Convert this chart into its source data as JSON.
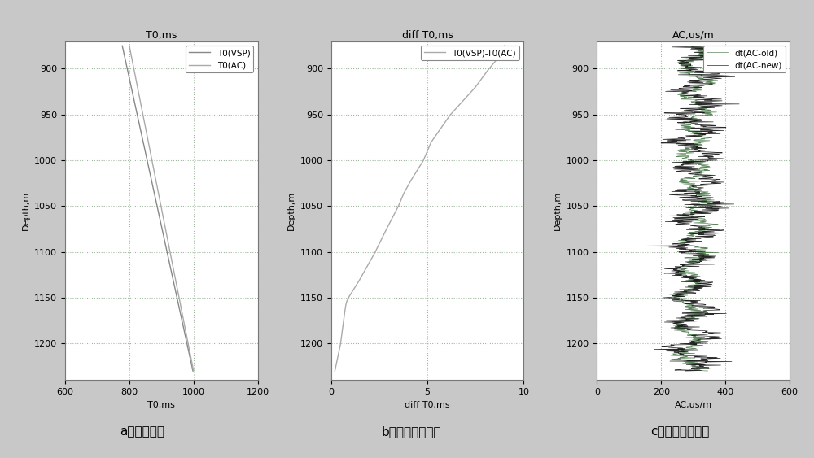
{
  "fig_width": 10.0,
  "fig_height": 5.63,
  "fig_dpi": 100,
  "bg_color": "#c8c8c8",
  "panel_bg": "#ffffff",
  "depth_min": 875,
  "depth_max": 1230,
  "depth_ticks": [
    900,
    950,
    1000,
    1050,
    1100,
    1150,
    1200
  ],
  "panel_a": {
    "title": "T0,ms",
    "xlabel": "T0,ms",
    "xlim": [
      600,
      1200
    ],
    "xticks": [
      600,
      800,
      1000,
      1200
    ],
    "vsp_color": "#888888",
    "ac_color": "#aaaaaa",
    "legend_labels": [
      "T0(VSP)",
      "T0(AC)"
    ]
  },
  "panel_b": {
    "title": "diff T0,ms",
    "xlabel": "diff T0,ms",
    "xlim": [
      0,
      10
    ],
    "xticks": [
      0,
      5,
      10
    ],
    "diff_color": "#aaaaaa",
    "legend_label": "T0(VSP)-T0(AC)"
  },
  "panel_c": {
    "title": "AC,us/m",
    "xlabel": "AC,us/m",
    "xlim": [
      0,
      600
    ],
    "xticks": [
      0,
      200,
      400,
      600
    ],
    "old_color": "#4a7a4a",
    "new_color": "#111111",
    "legend_labels": [
      "dt(AC-old)",
      "dt(AC-new)"
    ]
  },
  "caption_a": "a：时深关系",
  "caption_b": "b：时深关系时差",
  "caption_c": "c：校正前后声波",
  "ylabel": "Depth,m",
  "grid_color": "#a0b8a0",
  "grid_style": ":",
  "grid_lw": 0.8
}
